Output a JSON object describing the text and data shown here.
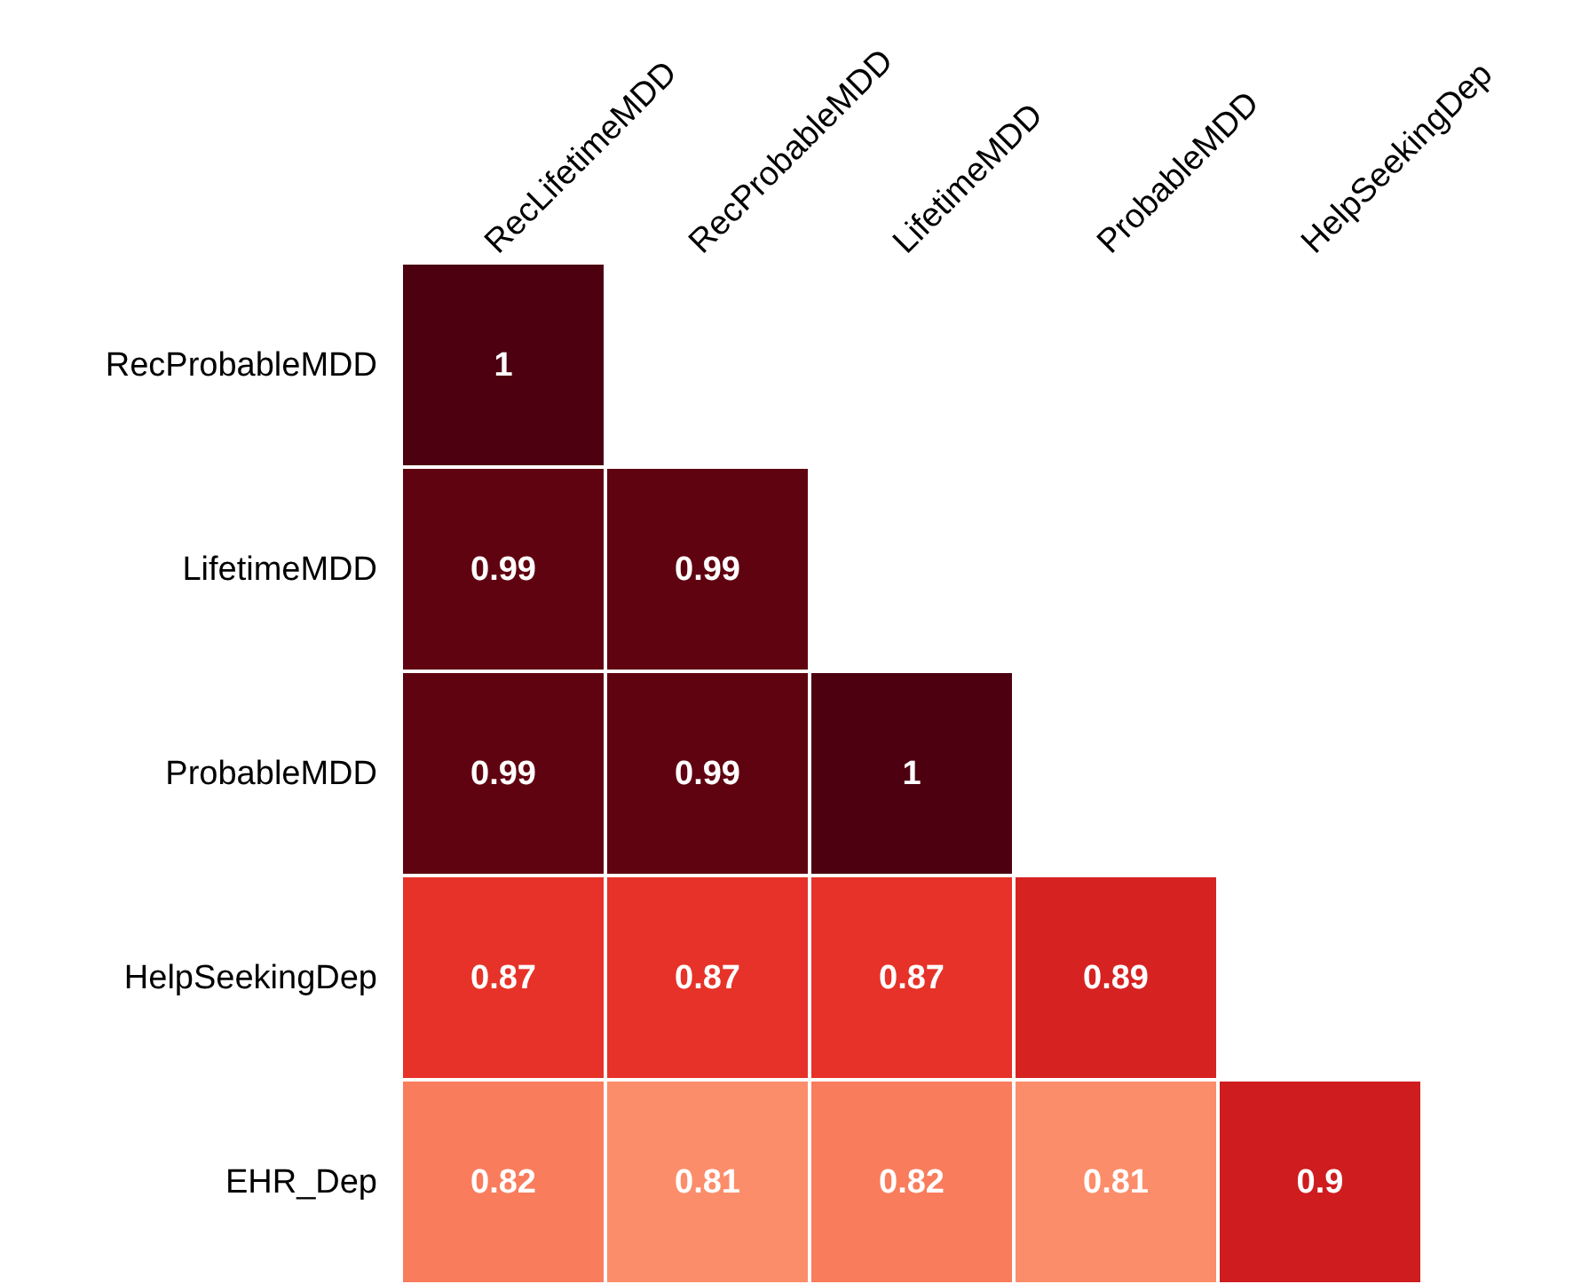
{
  "chart_data": {
    "type": "heatmap",
    "categories": [
      "RecLifetimeMDD",
      "RecProbableMDD",
      "LifetimeMDD",
      "ProbableMDD",
      "HelpSeekingDep"
    ],
    "y_categories": [
      "RecProbableMDD",
      "LifetimeMDD",
      "ProbableMDD",
      "HelpSeekingDep",
      "EHR_Dep"
    ],
    "cells": [
      [
        1,
        null,
        null,
        null,
        null
      ],
      [
        0.99,
        0.99,
        null,
        null,
        null
      ],
      [
        0.99,
        0.99,
        1,
        null,
        null
      ],
      [
        0.87,
        0.87,
        0.87,
        0.89,
        null
      ],
      [
        0.82,
        0.81,
        0.82,
        0.81,
        0.9
      ]
    ],
    "data_labels": true
  }
}
